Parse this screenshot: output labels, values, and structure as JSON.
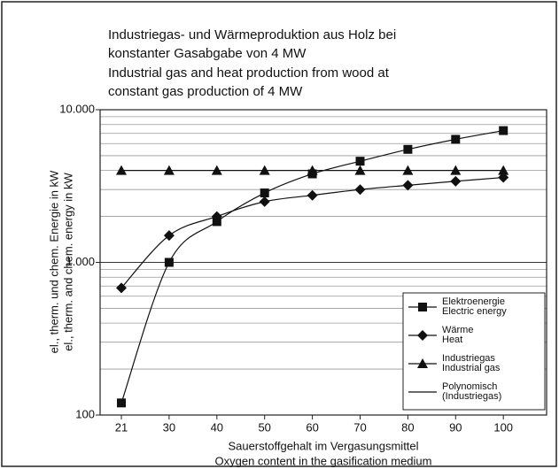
{
  "chart_data": {
    "type": "line",
    "title": [
      "Industriegas- und Wärmeproduktion aus Holz bei",
      "konstanter Gasabgabe von 4 MW"
    ],
    "subtitle": [
      "Industrial gas and heat production from wood at",
      "constant gas production of 4 MW"
    ],
    "y_label": [
      "el., therm. und chem. Energie in kW",
      "el., therm. and chem. energy in kW"
    ],
    "x_label": [
      "Sauerstoffgehalt im Vergasungsmittel",
      "Oxygen content in the gasification medium"
    ],
    "categories": [
      "21",
      "30",
      "40",
      "50",
      "60",
      "70",
      "80",
      "90",
      "100"
    ],
    "series": [
      {
        "name": [
          "Elektroenergie",
          "Electric energy"
        ],
        "color": "#111111",
        "marker": "square",
        "line": "smooth",
        "values": [
          120,
          1000,
          1850,
          2850,
          3800,
          4600,
          5500,
          6400,
          7300
        ]
      },
      {
        "name": [
          "Wärme",
          "Heat"
        ],
        "color": "#111111",
        "marker": "diamond",
        "line": "smooth",
        "values": [
          680,
          1500,
          2000,
          2500,
          2750,
          3000,
          3200,
          3400,
          3600
        ]
      },
      {
        "name": [
          "Industriegas",
          "Industrial gas"
        ],
        "color": "#111111",
        "marker": "triangle",
        "line": "none",
        "values": [
          4000,
          4000,
          4000,
          4000,
          4000,
          4000,
          4000,
          4000,
          4000
        ]
      },
      {
        "name": [
          "Polynomisch",
          "(Industriegas)"
        ],
        "color": "#111111",
        "marker": "none",
        "line": "straight",
        "values": [
          4000,
          4000,
          4000,
          4000,
          4000,
          4000,
          4000,
          4000,
          4000
        ]
      }
    ],
    "ylim": [
      100,
      10000
    ],
    "log_y": true,
    "yticks": [
      100,
      {
        "value": 1000,
        "label": "1.000"
      },
      {
        "value": 10000,
        "label": "10.000"
      }
    ],
    "minor_yticks": [
      200,
      300,
      400,
      500,
      600,
      700,
      800,
      900,
      2000,
      3000,
      4000,
      5000,
      6000,
      7000,
      8000,
      9000
    ],
    "grid": true,
    "legend": "lower right"
  }
}
